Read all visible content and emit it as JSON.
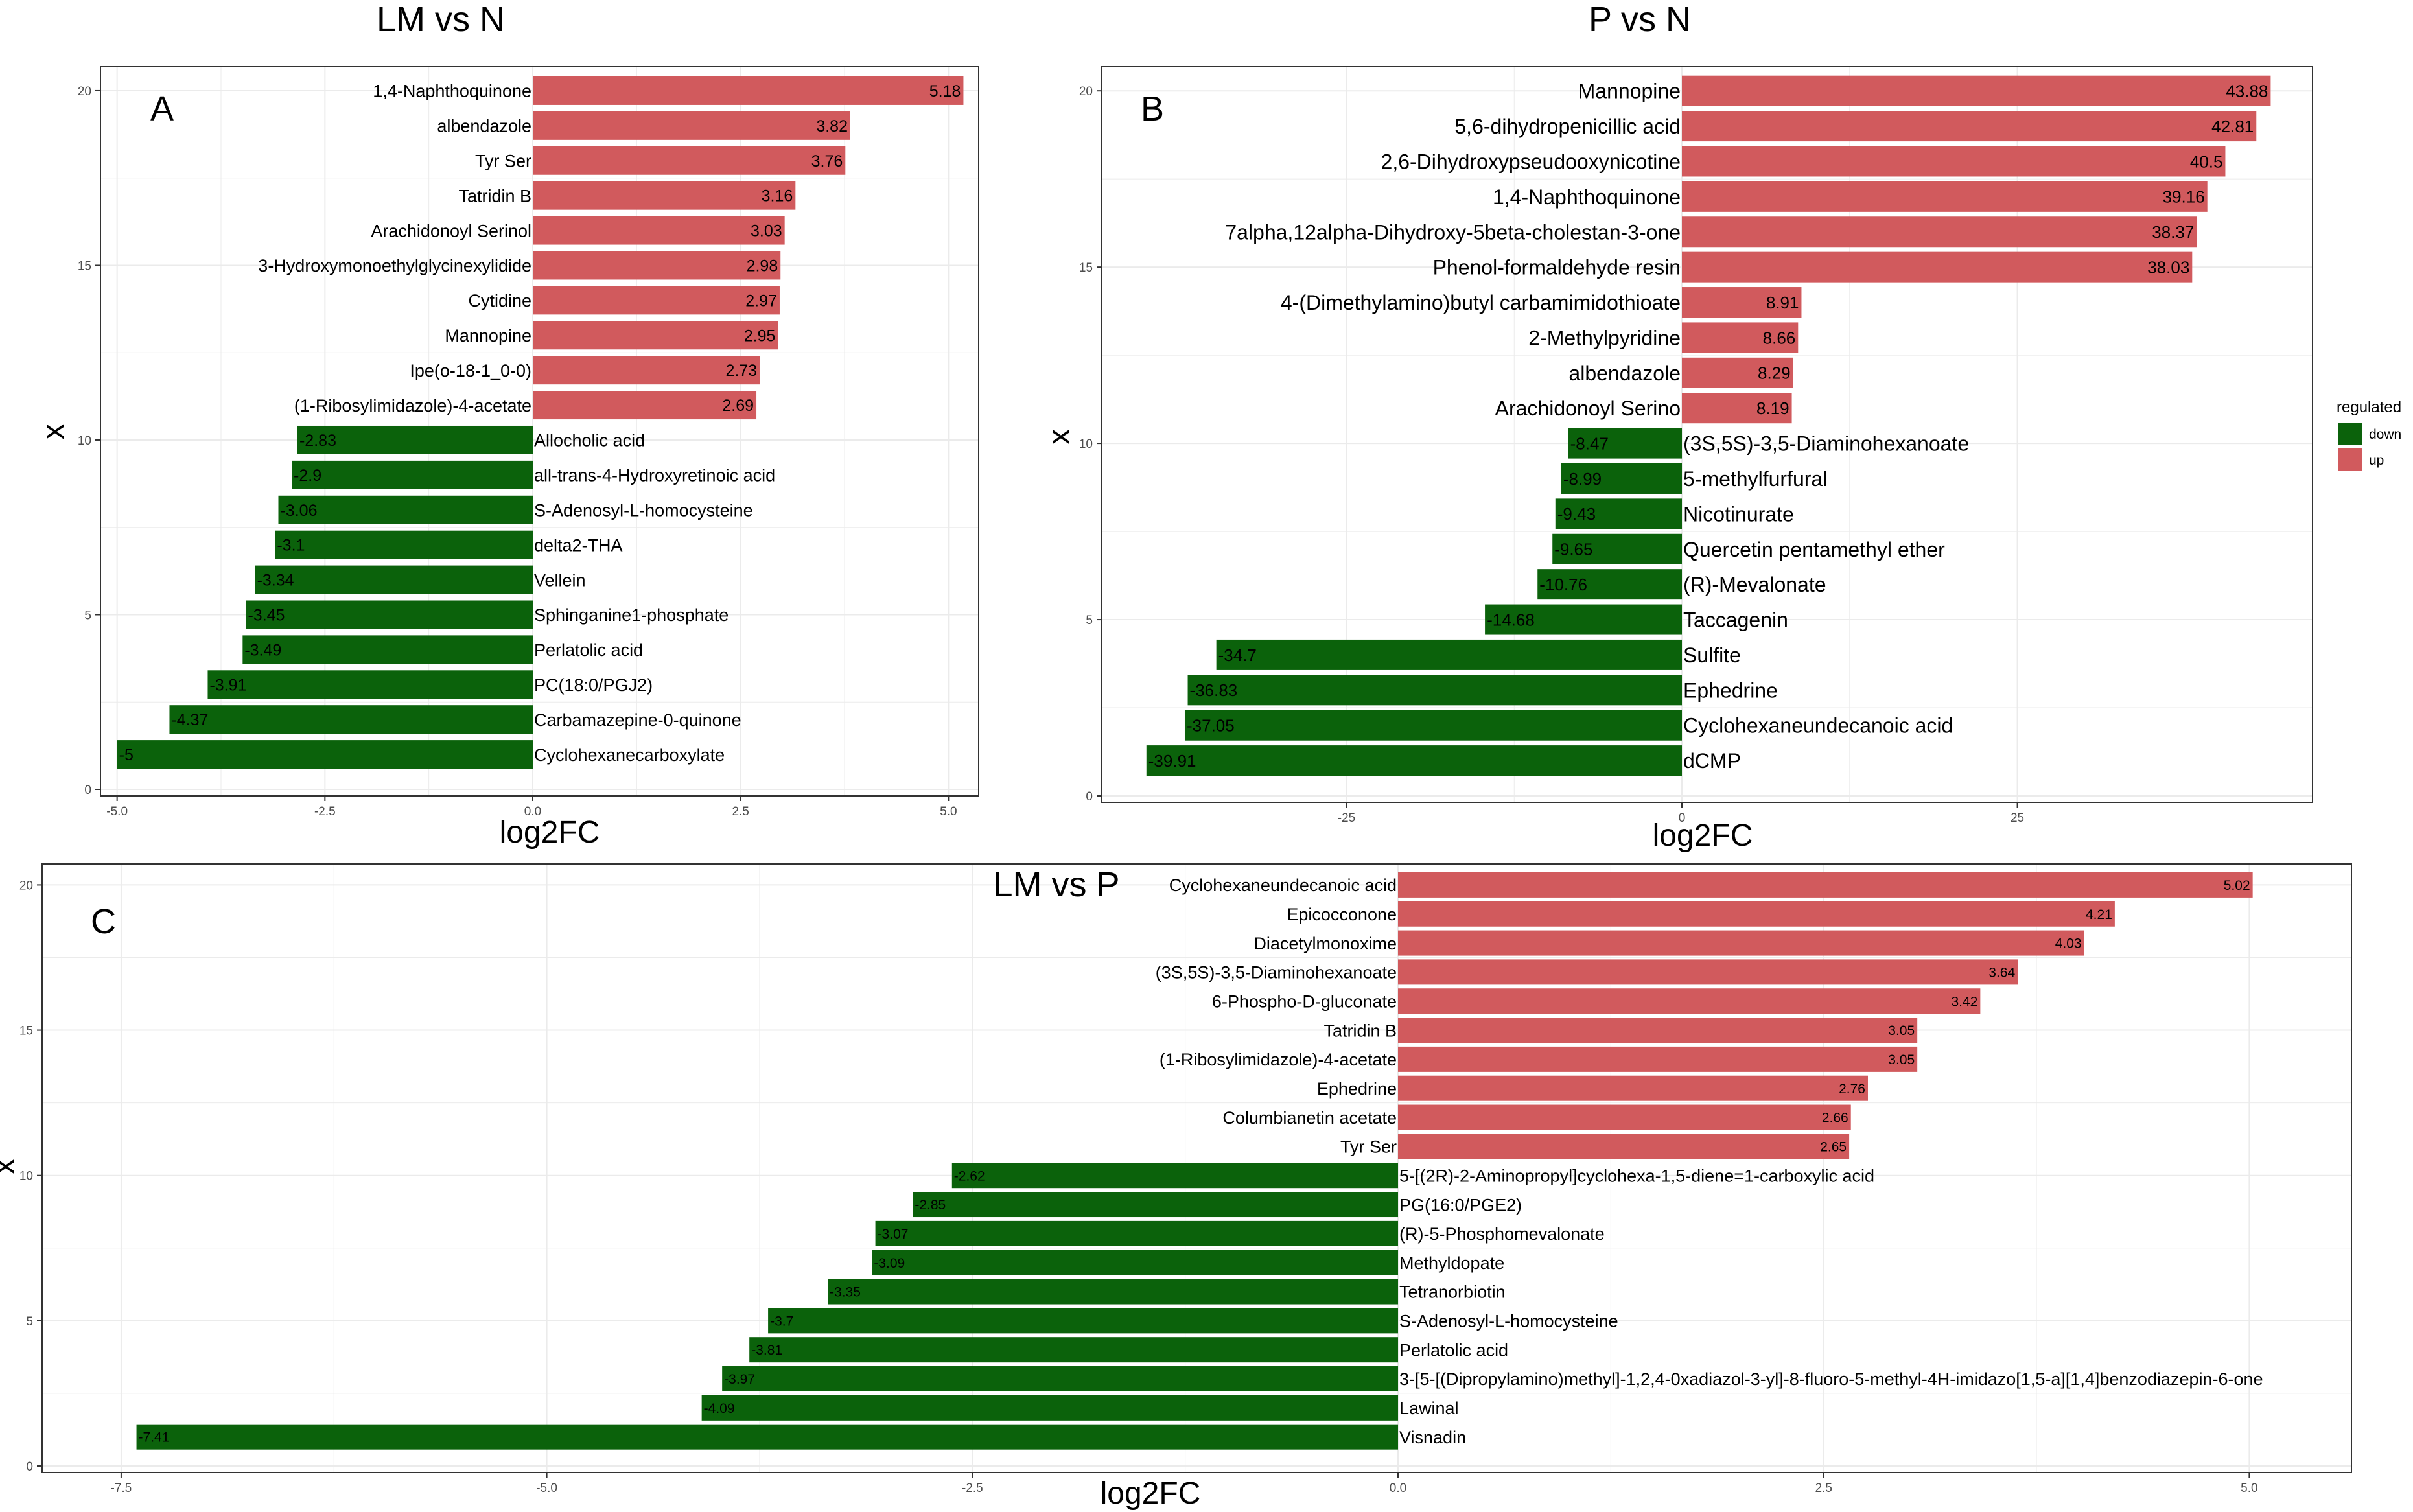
{
  "colors": {
    "up": "#d15a5d",
    "down": "#0b620b",
    "grid": "#ebebeb",
    "frame": "#333333"
  },
  "legend": {
    "title": "regulated",
    "items": [
      {
        "label": "down",
        "color": "#0b620b"
      },
      {
        "label": "up",
        "color": "#d15a5d"
      }
    ]
  },
  "chart_data": [
    {
      "type": "bar",
      "orientation": "horizontal",
      "panel": "A",
      "title": "LM vs N",
      "xlabel": "log2FC",
      "ylabel": "x",
      "xlim": [
        -5.2,
        5.3
      ],
      "ylim": [
        0,
        20.5
      ],
      "xticks": [
        -5.0,
        -2.5,
        0.0,
        2.5,
        5.0
      ],
      "xtick_labels": [
        "-5.0",
        "-2.5",
        "0.0",
        "2.5",
        "5.0"
      ],
      "yticks": [
        0,
        5,
        10,
        15,
        20
      ],
      "grid": true,
      "bars": [
        {
          "name": "1,4-Naphthoquinone",
          "value": 5.18,
          "label": "5.18",
          "regulated": "up"
        },
        {
          "name": "albendazole",
          "value": 3.82,
          "label": "3.82",
          "regulated": "up"
        },
        {
          "name": "Tyr Ser",
          "value": 3.76,
          "label": "3.76",
          "regulated": "up"
        },
        {
          "name": "Tatridin B",
          "value": 3.16,
          "label": "3.16",
          "regulated": "up"
        },
        {
          "name": "Arachidonoyl Serinol",
          "value": 3.03,
          "label": "3.03",
          "regulated": "up"
        },
        {
          "name": "3-Hydroxymonoethylglycinexylidide",
          "value": 2.98,
          "label": "2.98",
          "regulated": "up"
        },
        {
          "name": "Cytidine",
          "value": 2.97,
          "label": "2.97",
          "regulated": "up"
        },
        {
          "name": "Mannopine",
          "value": 2.95,
          "label": "2.95",
          "regulated": "up"
        },
        {
          "name": "Ipe(o-18-1_0-0)",
          "value": 2.73,
          "label": "2.73",
          "regulated": "up"
        },
        {
          "name": "(1-Ribosylimidazole)-4-acetate",
          "value": 2.69,
          "label": "2.69",
          "regulated": "up"
        },
        {
          "name": "Allocholic acid",
          "value": -2.83,
          "label": "-2.83",
          "regulated": "down"
        },
        {
          "name": "all-trans-4-Hydroxyretinoic acid",
          "value": -2.9,
          "label": "-2.9",
          "regulated": "down"
        },
        {
          "name": "S-Adenosyl-L-homocysteine",
          "value": -3.06,
          "label": "-3.06",
          "regulated": "down"
        },
        {
          "name": "delta2-THA",
          "value": -3.1,
          "label": "-3.1",
          "regulated": "down"
        },
        {
          "name": "Vellein",
          "value": -3.34,
          "label": "-3.34",
          "regulated": "down"
        },
        {
          "name": "Sphinganine1-phosphate",
          "value": -3.45,
          "label": "-3.45",
          "regulated": "down"
        },
        {
          "name": "Perlatolic acid",
          "value": -3.49,
          "label": "-3.49",
          "regulated": "down"
        },
        {
          "name": "PC(18:0/PGJ2)",
          "value": -3.91,
          "label": "-3.91",
          "regulated": "down"
        },
        {
          "name": "Carbamazepine-0-quinone",
          "value": -4.37,
          "label": "-4.37",
          "regulated": "down"
        },
        {
          "name": "Cyclohexanecarboxylate",
          "value": -5.0,
          "label": "-5",
          "regulated": "down"
        }
      ]
    },
    {
      "type": "bar",
      "orientation": "horizontal",
      "panel": "B",
      "title": "P vs N",
      "xlabel": "log2FC",
      "ylabel": "x",
      "xlim": [
        -42.5,
        47.0
      ],
      "ylim": [
        0,
        20.5
      ],
      "xticks": [
        -25,
        0,
        25
      ],
      "xtick_labels": [
        "-25",
        "0",
        "25"
      ],
      "yticks": [
        0,
        5,
        10,
        15,
        20
      ],
      "grid": true,
      "bars": [
        {
          "name": "Mannopine",
          "value": 43.88,
          "label": "43.88",
          "regulated": "up"
        },
        {
          "name": "5,6-dihydropenicillic acid",
          "value": 42.81,
          "label": "42.81",
          "regulated": "up"
        },
        {
          "name": "2,6-Dihydroxypseudooxynicotine",
          "value": 40.5,
          "label": "40.5",
          "regulated": "up"
        },
        {
          "name": "1,4-Naphthoquinone",
          "value": 39.16,
          "label": "39.16",
          "regulated": "up"
        },
        {
          "name": "7alpha,12alpha-Dihydroxy-5beta-cholestan-3-one",
          "value": 38.37,
          "label": "38.37",
          "regulated": "up"
        },
        {
          "name": "Phenol-formaldehyde resin",
          "value": 38.03,
          "label": "38.03",
          "regulated": "up"
        },
        {
          "name": "4-(Dimethylamino)butyl carbamimidothioate",
          "value": 8.91,
          "label": "8.91",
          "regulated": "up"
        },
        {
          "name": "2-Methylpyridine",
          "value": 8.66,
          "label": "8.66",
          "regulated": "up"
        },
        {
          "name": "albendazole",
          "value": 8.29,
          "label": "8.29",
          "regulated": "up"
        },
        {
          "name": "Arachidonoyl Serino",
          "value": 8.19,
          "label": "8.19",
          "regulated": "up"
        },
        {
          "name": "(3S,5S)-3,5-Diaminohexanoate",
          "value": -8.47,
          "label": "-8.47",
          "regulated": "down"
        },
        {
          "name": "5-methylfurfural",
          "value": -8.99,
          "label": "-8.99",
          "regulated": "down"
        },
        {
          "name": "Nicotinurate",
          "value": -9.43,
          "label": "-9.43",
          "regulated": "down"
        },
        {
          "name": "Quercetin pentamethyl ether",
          "value": -9.65,
          "label": "-9.65",
          "regulated": "down"
        },
        {
          "name": "(R)-Mevalonate",
          "value": -10.76,
          "label": "-10.76",
          "regulated": "down"
        },
        {
          "name": "Taccagenin",
          "value": -14.68,
          "label": "-14.68",
          "regulated": "down"
        },
        {
          "name": "Sulfite",
          "value": -34.7,
          "label": "-34.7",
          "regulated": "down"
        },
        {
          "name": "Ephedrine",
          "value": -36.83,
          "label": "-36.83",
          "regulated": "down"
        },
        {
          "name": "Cyclohexaneundecanoic acid",
          "value": -37.05,
          "label": "-37.05",
          "regulated": "down"
        },
        {
          "name": "dCMP",
          "value": -39.91,
          "label": "-39.91",
          "regulated": "down"
        }
      ]
    },
    {
      "type": "bar",
      "orientation": "horizontal",
      "panel": "C",
      "title": "LM vs P",
      "xlabel": "log2FC",
      "ylabel": "x",
      "xlim": [
        -7.8,
        5.6
      ],
      "ylim": [
        0,
        20.5
      ],
      "xticks": [
        -7.5,
        -5.0,
        -2.5,
        0.0,
        2.5,
        5.0
      ],
      "xtick_labels": [
        "-7.5",
        "-5.0",
        "-2.5",
        "0.0",
        "2.5",
        "5.0"
      ],
      "yticks": [
        0,
        5,
        10,
        15,
        20
      ],
      "grid": true,
      "bars": [
        {
          "name": "Cyclohexaneundecanoic acid",
          "value": 5.02,
          "label": "5.02",
          "regulated": "up"
        },
        {
          "name": "Epicocconone",
          "value": 4.21,
          "label": "4.21",
          "regulated": "up"
        },
        {
          "name": "Diacetylmonoxime",
          "value": 4.03,
          "label": "4.03",
          "regulated": "up"
        },
        {
          "name": "(3S,5S)-3,5-Diaminohexanoate",
          "value": 3.64,
          "label": "3.64",
          "regulated": "up"
        },
        {
          "name": "6-Phospho-D-gluconate",
          "value": 3.42,
          "label": "3.42",
          "regulated": "up"
        },
        {
          "name": "Tatridin B",
          "value": 3.05,
          "label": "3.05",
          "regulated": "up"
        },
        {
          "name": "(1-Ribosylimidazole)-4-acetate",
          "value": 3.05,
          "label": "3.05",
          "regulated": "up"
        },
        {
          "name": "Ephedrine",
          "value": 2.76,
          "label": "2.76",
          "regulated": "up"
        },
        {
          "name": "Columbianetin acetate",
          "value": 2.66,
          "label": "2.66",
          "regulated": "up"
        },
        {
          "name": "Tyr Ser",
          "value": 2.65,
          "label": "2.65",
          "regulated": "up"
        },
        {
          "name": "5-[(2R)-2-Aminopropyl]cyclohexa-1,5-diene=1-carboxylic acid",
          "value": -2.62,
          "label": "-2.62",
          "regulated": "down"
        },
        {
          "name": "PG(16:0/PGE2)",
          "value": -2.85,
          "label": "-2.85",
          "regulated": "down"
        },
        {
          "name": "(R)-5-Phosphomevalonate",
          "value": -3.07,
          "label": "-3.07",
          "regulated": "down"
        },
        {
          "name": "Methyldopate",
          "value": -3.09,
          "label": "-3.09",
          "regulated": "down"
        },
        {
          "name": "Tetranorbiotin",
          "value": -3.35,
          "label": "-3.35",
          "regulated": "down"
        },
        {
          "name": "S-Adenosyl-L-homocysteine",
          "value": -3.7,
          "label": "-3.7",
          "regulated": "down"
        },
        {
          "name": "Perlatolic acid",
          "value": -3.81,
          "label": "-3.81",
          "regulated": "down"
        },
        {
          "name": "3-[5-[(Dipropylamino)methyl]-1,2,4-0xadiazol-3-yl]-8-fluoro-5-methyl-4H-imidazo[1,5-a][1,4]benzodiazepin-6-one",
          "value": -3.97,
          "label": "-3.97",
          "regulated": "down"
        },
        {
          "name": "Lawinal",
          "value": -4.09,
          "label": "-4.09",
          "regulated": "down"
        },
        {
          "name": "Visnadin",
          "value": -7.41,
          "label": "-7.41",
          "regulated": "down"
        }
      ]
    }
  ]
}
